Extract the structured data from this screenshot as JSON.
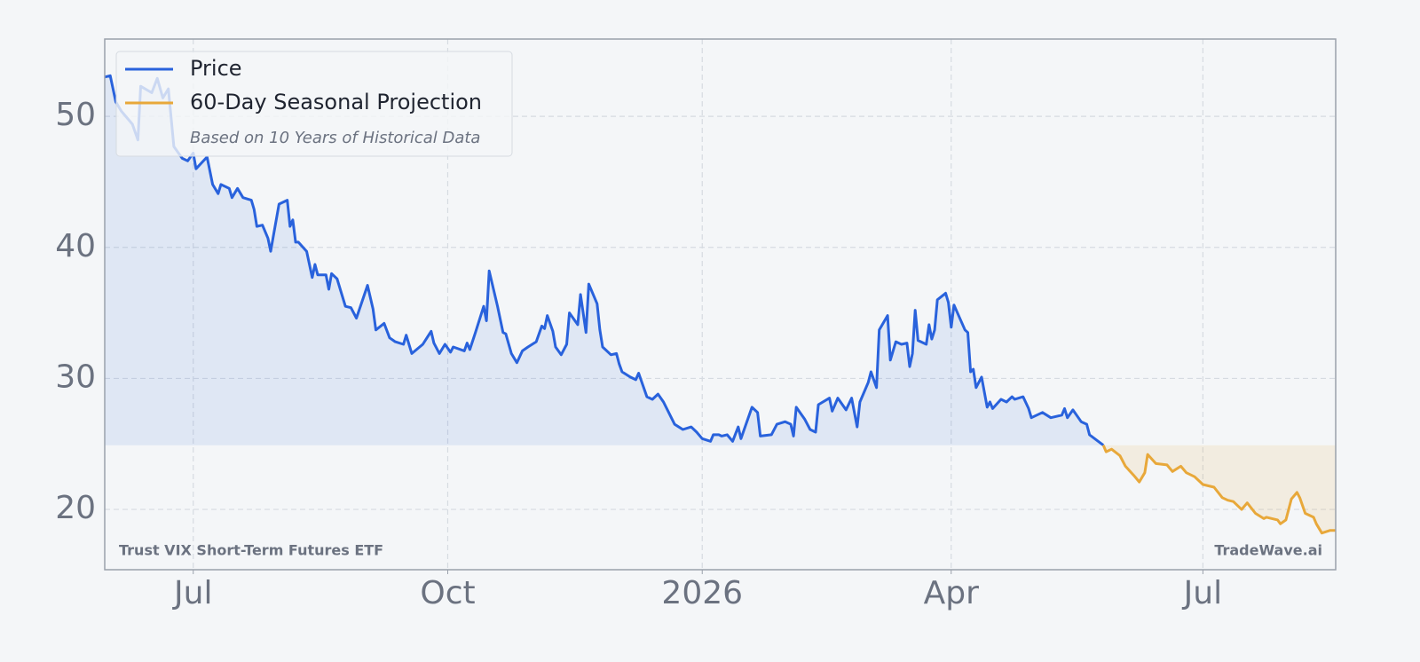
{
  "chart_data": {
    "type": "line",
    "legend_note": "Based on 10 Years of Historical Data",
    "source_label": "Trust VIX Short-Term Futures ETF",
    "watermark": "TradeWave.ai",
    "legend": "upper left",
    "grid": true,
    "fill_to_last_value": true,
    "xlim": [
      0,
      445
    ],
    "xticks": [
      {
        "value": 32,
        "label": "Jul"
      },
      {
        "value": 124,
        "label": "Oct"
      },
      {
        "value": 216,
        "label": "2026"
      },
      {
        "value": 306,
        "label": "Apr"
      },
      {
        "value": 397,
        "label": "Jul"
      }
    ],
    "ylim": [
      15.4,
      55.9
    ],
    "yticks": [
      20,
      30,
      40,
      50
    ],
    "series": [
      {
        "name": "Price",
        "color": "#2962dc",
        "x": [
          0,
          2,
          4,
          6,
          10,
          12,
          13,
          17,
          19,
          21,
          23,
          25,
          28,
          30,
          32,
          33,
          37,
          39,
          41,
          42,
          45,
          46,
          48,
          50,
          53,
          54,
          55,
          57,
          59,
          60,
          61,
          63,
          66,
          67,
          68,
          69,
          70,
          73,
          75,
          76,
          77,
          80,
          81,
          82,
          84,
          87,
          89,
          91,
          95,
          97,
          98,
          101,
          103,
          105,
          108,
          109,
          111,
          115,
          118,
          119,
          121,
          123,
          125,
          126,
          130,
          131,
          132,
          134,
          137,
          138,
          139,
          142,
          144,
          145,
          147,
          149,
          151,
          153,
          156,
          158,
          159,
          160,
          162,
          163,
          165,
          167,
          168,
          171,
          172,
          174,
          175,
          178,
          179,
          180,
          183,
          185,
          186,
          187,
          190,
          192,
          193,
          196,
          198,
          200,
          202,
          206,
          209,
          212,
          214,
          216,
          219,
          220,
          222,
          223,
          225,
          227,
          229,
          230,
          234,
          236,
          237,
          241,
          243,
          246,
          248,
          249,
          250,
          253,
          255,
          257,
          258,
          262,
          263,
          265,
          268,
          270,
          272,
          273,
          276,
          277,
          279,
          280,
          283,
          284,
          286,
          288,
          290,
          291,
          292,
          293,
          294,
          297,
          298,
          299,
          300,
          301,
          304,
          305,
          306,
          307,
          311,
          312,
          313,
          314,
          315,
          317,
          319,
          320,
          321,
          324,
          326,
          328,
          329,
          332,
          334,
          335,
          339,
          342,
          346,
          347,
          348,
          350,
          353,
          355,
          356,
          361
        ],
        "values": [
          53.0,
          53.1,
          51.1,
          50.4,
          49.4,
          48.2,
          52.3,
          51.8,
          52.9,
          51.4,
          52.1,
          47.7,
          46.8,
          46.6,
          47.2,
          46.0,
          46.9,
          44.8,
          44.1,
          44.8,
          44.5,
          43.8,
          44.5,
          43.8,
          43.6,
          42.9,
          41.6,
          41.7,
          40.7,
          39.7,
          40.9,
          43.3,
          43.6,
          41.6,
          42.1,
          40.4,
          40.4,
          39.7,
          37.7,
          38.7,
          37.9,
          37.9,
          36.8,
          38.0,
          37.6,
          35.5,
          35.4,
          34.6,
          37.1,
          35.3,
          33.7,
          34.2,
          33.1,
          32.8,
          32.6,
          33.3,
          31.9,
          32.6,
          33.6,
          32.7,
          31.9,
          32.6,
          32.0,
          32.4,
          32.1,
          32.7,
          32.2,
          33.5,
          35.5,
          34.4,
          38.2,
          35.5,
          33.5,
          33.4,
          31.9,
          31.2,
          32.1,
          32.4,
          32.8,
          34.0,
          33.8,
          34.8,
          33.6,
          32.4,
          31.8,
          32.6,
          35.0,
          34.1,
          36.4,
          33.5,
          37.2,
          35.7,
          33.7,
          32.4,
          31.8,
          31.9,
          31.1,
          30.5,
          30.1,
          29.9,
          30.4,
          28.6,
          28.4,
          28.8,
          28.2,
          26.5,
          26.1,
          26.3,
          25.9,
          25.4,
          25.2,
          25.7,
          25.7,
          25.6,
          25.7,
          25.2,
          26.3,
          25.4,
          27.8,
          27.4,
          25.6,
          25.7,
          26.5,
          26.7,
          26.5,
          25.6,
          27.8,
          26.9,
          26.1,
          25.9,
          28.0,
          28.5,
          27.5,
          28.5,
          27.6,
          28.5,
          26.3,
          28.2,
          29.7,
          30.5,
          29.3,
          33.7,
          34.8,
          31.4,
          32.8,
          32.6,
          32.7,
          30.9,
          31.9,
          35.2,
          32.9,
          32.6,
          34.1,
          33.0,
          33.7,
          36.0,
          36.5,
          35.8,
          33.9,
          35.6,
          33.7,
          33.5,
          30.5,
          30.7,
          29.3,
          30.1,
          27.8,
          28.2,
          27.7,
          28.4,
          28.2,
          28.6,
          28.4,
          28.6,
          27.7,
          27.0,
          27.4,
          27.0,
          27.2,
          27.7,
          27.0,
          27.6,
          26.7,
          26.5,
          25.7,
          24.9
        ],
        "fill": "rgba(41,98,220,0.10)"
      },
      {
        "name": "60-Day Seasonal Projection",
        "color": "#e8a83a",
        "x": [
          361,
          362,
          364,
          367,
          369,
          372,
          374,
          376,
          377,
          380,
          384,
          386,
          389,
          391,
          394,
          397,
          399,
          401,
          404,
          406,
          408,
          411,
          413,
          416,
          419,
          420,
          424,
          425,
          427,
          429,
          431,
          432,
          434,
          437,
          438,
          440,
          443,
          445
        ],
        "values": [
          24.9,
          24.4,
          24.6,
          24.1,
          23.3,
          22.6,
          22.1,
          22.8,
          24.2,
          23.5,
          23.4,
          22.9,
          23.3,
          22.8,
          22.5,
          21.9,
          21.8,
          21.7,
          20.9,
          20.7,
          20.6,
          20.0,
          20.5,
          19.7,
          19.3,
          19.4,
          19.2,
          18.9,
          19.2,
          20.8,
          21.3,
          20.9,
          19.7,
          19.4,
          18.9,
          18.2,
          18.4,
          18.4
        ],
        "fill": "rgba(232,168,58,0.12)"
      }
    ]
  }
}
